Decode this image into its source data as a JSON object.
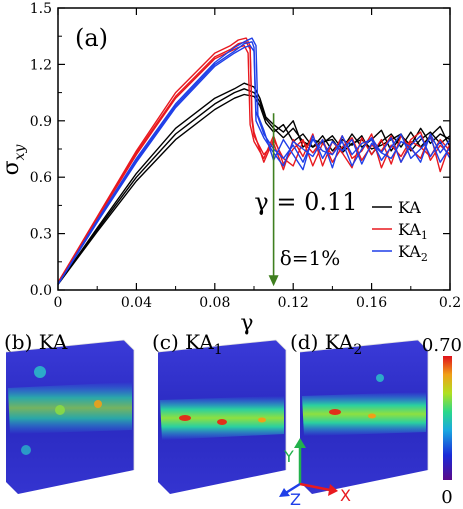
{
  "chart_data": {
    "type": "line",
    "panel_label": "(a)",
    "xlabel": "γ",
    "ylabel_main": "σ",
    "ylabel_sub": "xy",
    "xlim": [
      0,
      0.2
    ],
    "ylim": [
      0,
      1.5
    ],
    "xticks": [
      0,
      0.04,
      0.08,
      0.12,
      0.16,
      0.2
    ],
    "xtick_labels": [
      "0",
      "0.04",
      "0.08",
      "0.12",
      "0.16",
      "0.2"
    ],
    "yticks": [
      0,
      0.3,
      0.6,
      0.9,
      1.2,
      1.5
    ],
    "ytick_labels": [
      "0.0",
      "0.3",
      "0.6",
      "0.9",
      "1.2",
      "1.5"
    ],
    "annotation": {
      "text": "γ = 0.11",
      "x": 0.11,
      "arrow_from_y": 0.94,
      "arrow_to_y": 0.02,
      "color": "#3f7f1f"
    },
    "strain_rate_label": "δ=1%",
    "legend_position": "right-middle",
    "series": [
      {
        "name": "KA",
        "name_main": "KA",
        "name_sub": "",
        "color": "#000000",
        "runs": [
          {
            "x": [
              0,
              0.02,
              0.04,
              0.06,
              0.08,
              0.09,
              0.095,
              0.1,
              0.103,
              0.106,
              0.11,
              0.115,
              0.12,
              0.125,
              0.13,
              0.135,
              0.14,
              0.145,
              0.15,
              0.155,
              0.16,
              0.165,
              0.17,
              0.175,
              0.18,
              0.185,
              0.19,
              0.195,
              0.2
            ],
            "y": [
              0.03,
              0.33,
              0.62,
              0.86,
              1.02,
              1.07,
              1.1,
              1.08,
              1.02,
              0.92,
              0.88,
              0.84,
              0.9,
              0.76,
              0.8,
              0.78,
              0.82,
              0.75,
              0.83,
              0.76,
              0.8,
              0.85,
              0.74,
              0.82,
              0.77,
              0.86,
              0.78,
              0.83,
              0.8
            ]
          },
          {
            "x": [
              0,
              0.02,
              0.04,
              0.06,
              0.08,
              0.09,
              0.095,
              0.1,
              0.103,
              0.106,
              0.11,
              0.115,
              0.12,
              0.125,
              0.13,
              0.135,
              0.14,
              0.145,
              0.15,
              0.155,
              0.16,
              0.165,
              0.17,
              0.175,
              0.18,
              0.185,
              0.19,
              0.195,
              0.2
            ],
            "y": [
              0.03,
              0.32,
              0.6,
              0.83,
              0.99,
              1.05,
              1.07,
              1.05,
              1.0,
              0.91,
              0.86,
              0.81,
              0.86,
              0.79,
              0.76,
              0.82,
              0.74,
              0.8,
              0.77,
              0.82,
              0.72,
              0.79,
              0.83,
              0.76,
              0.84,
              0.76,
              0.82,
              0.87,
              0.76
            ]
          },
          {
            "x": [
              0,
              0.02,
              0.04,
              0.06,
              0.08,
              0.09,
              0.095,
              0.1,
              0.103,
              0.106,
              0.11,
              0.115,
              0.12,
              0.125,
              0.13,
              0.135,
              0.14,
              0.145,
              0.15,
              0.155,
              0.16,
              0.165,
              0.17,
              0.175,
              0.18,
              0.185,
              0.19,
              0.195,
              0.2
            ],
            "y": [
              0.03,
              0.31,
              0.58,
              0.8,
              0.96,
              1.02,
              1.04,
              1.03,
              0.98,
              0.89,
              0.84,
              0.88,
              0.79,
              0.83,
              0.76,
              0.79,
              0.8,
              0.73,
              0.78,
              0.8,
              0.75,
              0.77,
              0.8,
              0.83,
              0.74,
              0.8,
              0.84,
              0.78,
              0.82
            ]
          }
        ]
      },
      {
        "name": "KA1",
        "name_main": "KA",
        "name_sub": "1",
        "color": "#e8191f",
        "runs": [
          {
            "x": [
              0,
              0.02,
              0.04,
              0.06,
              0.08,
              0.088,
              0.092,
              0.096,
              0.098,
              0.099,
              0.1,
              0.105,
              0.11,
              0.115,
              0.12,
              0.125,
              0.13,
              0.135,
              0.14,
              0.145,
              0.15,
              0.155,
              0.16,
              0.165,
              0.17,
              0.175,
              0.18,
              0.185,
              0.19,
              0.195,
              0.2
            ],
            "y": [
              0.04,
              0.39,
              0.74,
              1.05,
              1.26,
              1.3,
              1.33,
              1.34,
              1.3,
              0.9,
              0.82,
              0.72,
              0.78,
              0.64,
              0.8,
              0.71,
              0.83,
              0.66,
              0.79,
              0.73,
              0.65,
              0.81,
              0.72,
              0.8,
              0.67,
              0.82,
              0.75,
              0.7,
              0.83,
              0.63,
              0.78
            ]
          },
          {
            "x": [
              0,
              0.02,
              0.04,
              0.06,
              0.08,
              0.088,
              0.092,
              0.095,
              0.097,
              0.098,
              0.1,
              0.105,
              0.11,
              0.115,
              0.12,
              0.125,
              0.13,
              0.135,
              0.14,
              0.145,
              0.15,
              0.155,
              0.16,
              0.165,
              0.17,
              0.175,
              0.18,
              0.185,
              0.19,
              0.195,
              0.2
            ],
            "y": [
              0.04,
              0.38,
              0.72,
              1.02,
              1.23,
              1.27,
              1.29,
              1.3,
              1.26,
              0.88,
              0.79,
              0.7,
              0.82,
              0.67,
              0.75,
              0.8,
              0.66,
              0.78,
              0.72,
              0.82,
              0.7,
              0.74,
              0.83,
              0.65,
              0.77,
              0.71,
              0.8,
              0.84,
              0.69,
              0.77,
              0.72
            ]
          },
          {
            "x": [
              0,
              0.02,
              0.04,
              0.06,
              0.08,
              0.088,
              0.092,
              0.096,
              0.098,
              0.099,
              0.1,
              0.105,
              0.11,
              0.115,
              0.12,
              0.125,
              0.13,
              0.135,
              0.14,
              0.145,
              0.15,
              0.155,
              0.16,
              0.165,
              0.17,
              0.175,
              0.18,
              0.185,
              0.19,
              0.195,
              0.2
            ],
            "y": [
              0.04,
              0.38,
              0.73,
              1.03,
              1.24,
              1.28,
              1.31,
              1.32,
              1.28,
              0.92,
              0.84,
              0.68,
              0.8,
              0.7,
              0.66,
              0.79,
              0.73,
              0.8,
              0.68,
              0.76,
              0.81,
              0.69,
              0.77,
              0.74,
              0.82,
              0.68,
              0.79,
              0.76,
              0.71,
              0.8,
              0.74
            ]
          }
        ]
      },
      {
        "name": "KA2",
        "name_main": "KA",
        "name_sub": "2",
        "color": "#1f3fe8",
        "runs": [
          {
            "x": [
              0,
              0.02,
              0.04,
              0.06,
              0.08,
              0.09,
              0.095,
              0.099,
              0.101,
              0.102,
              0.105,
              0.11,
              0.115,
              0.12,
              0.125,
              0.13,
              0.135,
              0.14,
              0.145,
              0.15,
              0.155,
              0.16,
              0.165,
              0.17,
              0.175,
              0.18,
              0.185,
              0.19,
              0.195,
              0.2
            ],
            "y": [
              0.03,
              0.37,
              0.7,
              0.99,
              1.21,
              1.29,
              1.32,
              1.34,
              1.3,
              0.93,
              0.85,
              0.69,
              0.8,
              0.72,
              0.64,
              0.82,
              0.7,
              0.79,
              0.74,
              0.8,
              0.67,
              0.78,
              0.73,
              0.81,
              0.68,
              0.77,
              0.82,
              0.71,
              0.79,
              0.7
            ]
          },
          {
            "x": [
              0,
              0.02,
              0.04,
              0.06,
              0.08,
              0.09,
              0.095,
              0.098,
              0.1,
              0.101,
              0.105,
              0.11,
              0.115,
              0.12,
              0.125,
              0.13,
              0.135,
              0.14,
              0.145,
              0.15,
              0.155,
              0.16,
              0.165,
              0.17,
              0.175,
              0.18,
              0.185,
              0.19,
              0.195,
              0.2
            ],
            "y": [
              0.03,
              0.36,
              0.68,
              0.97,
              1.19,
              1.26,
              1.29,
              1.3,
              1.27,
              0.9,
              0.81,
              0.73,
              0.66,
              0.79,
              0.75,
              0.71,
              0.8,
              0.65,
              0.82,
              0.72,
              0.78,
              0.8,
              0.69,
              0.76,
              0.83,
              0.7,
              0.75,
              0.81,
              0.68,
              0.76
            ]
          },
          {
            "x": [
              0,
              0.02,
              0.04,
              0.06,
              0.08,
              0.09,
              0.095,
              0.099,
              0.1,
              0.101,
              0.105,
              0.11,
              0.115,
              0.12,
              0.125,
              0.13,
              0.135,
              0.14,
              0.145,
              0.15,
              0.155,
              0.16,
              0.165,
              0.17,
              0.175,
              0.18,
              0.185,
              0.19,
              0.195,
              0.2
            ],
            "y": [
              0.03,
              0.36,
              0.69,
              0.98,
              1.2,
              1.27,
              1.31,
              1.32,
              1.29,
              0.95,
              0.83,
              0.75,
              0.7,
              0.77,
              0.68,
              0.8,
              0.74,
              0.72,
              0.79,
              0.66,
              0.75,
              0.81,
              0.73,
              0.7,
              0.79,
              0.76,
              0.68,
              0.83,
              0.73,
              0.8
            ]
          }
        ]
      }
    ]
  },
  "snapshots": [
    {
      "label_main": "(b) KA",
      "label_sub": ""
    },
    {
      "label_main": "(c) KA",
      "label_sub": "1"
    },
    {
      "label_main": "(d) KA",
      "label_sub": "2"
    }
  ],
  "colorbar": {
    "max_label": "0.70",
    "min_label": "0",
    "max_color": "#e0101a"
  },
  "axes3d": {
    "y": "Y",
    "z": "Z",
    "x": "X",
    "y_color": "#22b14c",
    "z_color": "#1f3fe8",
    "x_color": "#e8191f"
  }
}
